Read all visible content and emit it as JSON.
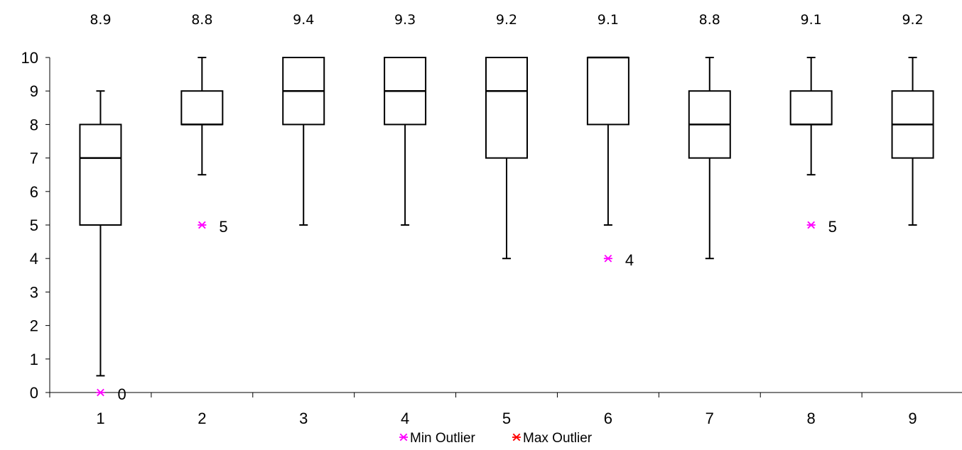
{
  "chart_data": {
    "type": "box",
    "title": "",
    "xlabel": "",
    "ylabel": "",
    "ylim": [
      0,
      10
    ],
    "y_ticks": [
      0,
      1,
      2,
      3,
      4,
      5,
      6,
      7,
      8,
      9,
      10
    ],
    "categories": [
      "1",
      "2",
      "3",
      "4",
      "5",
      "6",
      "7",
      "8",
      "9"
    ],
    "means": [
      "8.9",
      "8.8",
      "9.4",
      "9.3",
      "9.2",
      "9.1",
      "8.8",
      "9.1",
      "9.2"
    ],
    "boxes": [
      {
        "category": "1",
        "whisker_low": 0.5,
        "q1": 5,
        "median": 7,
        "q3": 8,
        "whisker_high": 9
      },
      {
        "category": "2",
        "whisker_low": 6.5,
        "q1": 8,
        "median": 8,
        "q3": 9,
        "whisker_high": 10
      },
      {
        "category": "3",
        "whisker_low": 5,
        "q1": 8,
        "median": 9,
        "q3": 10,
        "whisker_high": 10
      },
      {
        "category": "4",
        "whisker_low": 5,
        "q1": 8,
        "median": 9,
        "q3": 10,
        "whisker_high": 10
      },
      {
        "category": "5",
        "whisker_low": 4,
        "q1": 7,
        "median": 9,
        "q3": 10,
        "whisker_high": 10
      },
      {
        "category": "6",
        "whisker_low": 5,
        "q1": 8,
        "median": 10,
        "q3": 10,
        "whisker_high": 10
      },
      {
        "category": "7",
        "whisker_low": 4,
        "q1": 7,
        "median": 8,
        "q3": 9,
        "whisker_high": 10
      },
      {
        "category": "8",
        "whisker_low": 6.5,
        "q1": 8,
        "median": 8,
        "q3": 9,
        "whisker_high": 10
      },
      {
        "category": "9",
        "whisker_low": 5,
        "q1": 7,
        "median": 8,
        "q3": 9,
        "whisker_high": 10
      }
    ],
    "min_outliers": [
      {
        "category": "1",
        "value": 0,
        "label": "0"
      },
      {
        "category": "2",
        "value": 5,
        "label": "5"
      },
      {
        "category": "6",
        "value": 4,
        "label": "4"
      },
      {
        "category": "8",
        "value": 5,
        "label": "5"
      }
    ],
    "max_outliers": [],
    "legend": {
      "position": "bottom",
      "items": [
        {
          "name": "Min Outlier",
          "color": "#FF00FF",
          "symbol": "*"
        },
        {
          "name": "Max Outlier",
          "color": "#FF0000",
          "symbol": "*"
        }
      ]
    },
    "grid": false
  }
}
